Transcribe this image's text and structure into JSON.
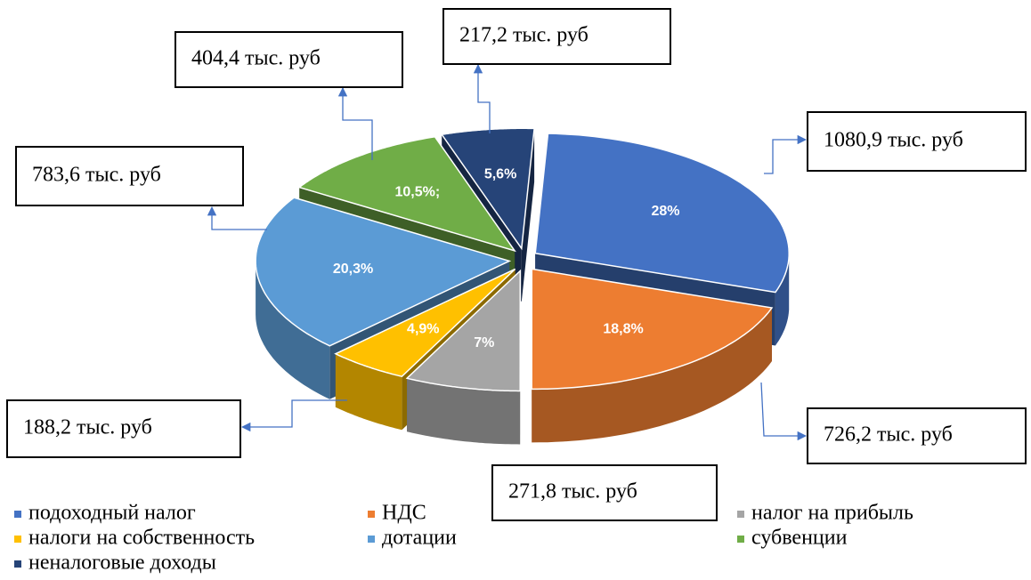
{
  "chart_data": {
    "type": "pie",
    "categories": [
      "подоходный налог",
      "НДС",
      "налог на прибыль",
      "налоги на собственность",
      "дотации",
      "субвенции",
      "неналоговые доходы"
    ],
    "values": [
      28,
      18.8,
      7,
      4.9,
      20.3,
      10.5,
      5.6
    ],
    "value_labels": [
      "28%",
      "18,8%",
      "7%",
      "4,9%",
      "20,3%",
      "10,5%;",
      "5,6%"
    ],
    "colors": [
      "#4472c4",
      "#ed7d31",
      "#a5a5a5",
      "#ffc000",
      "#5b9bd5",
      "#70ad47",
      "#264478"
    ],
    "annotations": [
      "1080,9 тыс. руб",
      "726,2 тыс. руб",
      "271,8 тыс. руб",
      "188,2 тыс. руб",
      "783,6 тыс. руб",
      "404,4 тыс. руб",
      "217,2 тыс. руб"
    ],
    "legend": "bottom"
  }
}
